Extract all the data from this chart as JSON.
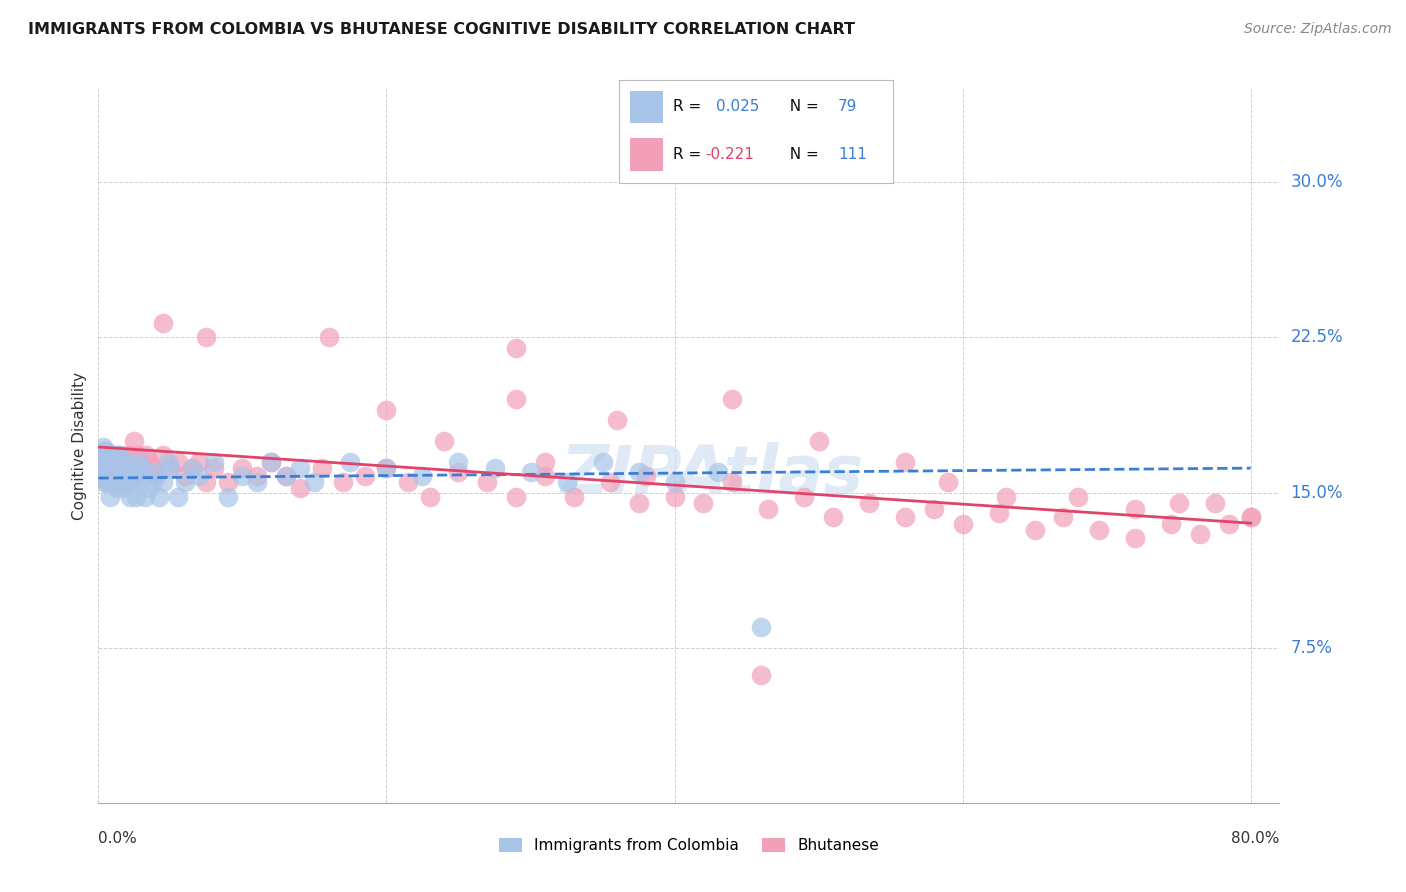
{
  "title": "IMMIGRANTS FROM COLOMBIA VS BHUTANESE COGNITIVE DISABILITY CORRELATION CHART",
  "source": "Source: ZipAtlas.com",
  "ylabel": "Cognitive Disability",
  "xlim": [
    0.0,
    0.82
  ],
  "ylim": [
    0.0,
    0.345
  ],
  "grid_color": "#d0d0d0",
  "watermark": "ZIPAtlas",
  "color_colombia": "#a8c4e8",
  "color_bhutan": "#f2a0b8",
  "trendline_colombia_color": "#3a7fd4",
  "trendline_bhutan_color": "#e0446a",
  "colombia_x": [
    0.001,
    0.002,
    0.003,
    0.003,
    0.004,
    0.004,
    0.005,
    0.005,
    0.006,
    0.006,
    0.007,
    0.007,
    0.008,
    0.008,
    0.009,
    0.009,
    0.01,
    0.01,
    0.011,
    0.011,
    0.012,
    0.012,
    0.013,
    0.013,
    0.014,
    0.015,
    0.015,
    0.016,
    0.016,
    0.017,
    0.017,
    0.018,
    0.018,
    0.019,
    0.02,
    0.02,
    0.021,
    0.022,
    0.022,
    0.023,
    0.024,
    0.025,
    0.026,
    0.027,
    0.028,
    0.03,
    0.032,
    0.033,
    0.035,
    0.038,
    0.04,
    0.042,
    0.045,
    0.048,
    0.05,
    0.055,
    0.06,
    0.065,
    0.07,
    0.08,
    0.09,
    0.1,
    0.11,
    0.12,
    0.13,
    0.14,
    0.15,
    0.175,
    0.2,
    0.225,
    0.25,
    0.275,
    0.3,
    0.325,
    0.35,
    0.375,
    0.4,
    0.43,
    0.46
  ],
  "colombia_y": [
    0.162,
    0.168,
    0.158,
    0.172,
    0.165,
    0.155,
    0.17,
    0.16,
    0.158,
    0.162,
    0.165,
    0.155,
    0.16,
    0.148,
    0.162,
    0.155,
    0.158,
    0.168,
    0.155,
    0.162,
    0.158,
    0.165,
    0.152,
    0.16,
    0.168,
    0.155,
    0.162,
    0.158,
    0.165,
    0.152,
    0.16,
    0.155,
    0.162,
    0.158,
    0.165,
    0.155,
    0.16,
    0.162,
    0.148,
    0.158,
    0.155,
    0.16,
    0.148,
    0.155,
    0.165,
    0.162,
    0.148,
    0.158,
    0.152,
    0.155,
    0.16,
    0.148,
    0.155,
    0.165,
    0.162,
    0.148,
    0.155,
    0.162,
    0.158,
    0.165,
    0.148,
    0.158,
    0.155,
    0.165,
    0.158,
    0.162,
    0.155,
    0.165,
    0.162,
    0.158,
    0.165,
    0.162,
    0.16,
    0.155,
    0.165,
    0.16,
    0.155,
    0.16,
    0.085
  ],
  "bhutan_x": [
    0.001,
    0.002,
    0.003,
    0.003,
    0.004,
    0.004,
    0.005,
    0.005,
    0.006,
    0.006,
    0.007,
    0.007,
    0.008,
    0.008,
    0.009,
    0.01,
    0.01,
    0.011,
    0.011,
    0.012,
    0.012,
    0.013,
    0.013,
    0.014,
    0.015,
    0.015,
    0.016,
    0.017,
    0.017,
    0.018,
    0.019,
    0.02,
    0.021,
    0.022,
    0.023,
    0.025,
    0.027,
    0.03,
    0.033,
    0.035,
    0.038,
    0.04,
    0.045,
    0.05,
    0.055,
    0.06,
    0.065,
    0.07,
    0.075,
    0.08,
    0.09,
    0.1,
    0.11,
    0.12,
    0.13,
    0.14,
    0.155,
    0.17,
    0.185,
    0.2,
    0.215,
    0.23,
    0.25,
    0.27,
    0.29,
    0.31,
    0.33,
    0.355,
    0.375,
    0.4,
    0.42,
    0.44,
    0.465,
    0.49,
    0.51,
    0.535,
    0.56,
    0.58,
    0.6,
    0.625,
    0.65,
    0.67,
    0.695,
    0.72,
    0.745,
    0.765,
    0.785,
    0.8,
    0.29,
    0.045,
    0.29,
    0.36,
    0.44,
    0.5,
    0.56,
    0.59,
    0.63,
    0.68,
    0.72,
    0.75,
    0.775,
    0.8,
    0.075,
    0.16,
    0.2,
    0.24,
    0.31,
    0.38,
    0.46
  ],
  "bhutan_y": [
    0.165,
    0.162,
    0.168,
    0.158,
    0.16,
    0.17,
    0.165,
    0.155,
    0.162,
    0.168,
    0.158,
    0.162,
    0.155,
    0.168,
    0.162,
    0.158,
    0.165,
    0.155,
    0.162,
    0.158,
    0.165,
    0.168,
    0.155,
    0.16,
    0.162,
    0.168,
    0.155,
    0.162,
    0.158,
    0.165,
    0.158,
    0.162,
    0.168,
    0.155,
    0.162,
    0.175,
    0.168,
    0.162,
    0.168,
    0.165,
    0.162,
    0.158,
    0.168,
    0.162,
    0.165,
    0.158,
    0.162,
    0.165,
    0.155,
    0.162,
    0.155,
    0.162,
    0.158,
    0.165,
    0.158,
    0.152,
    0.162,
    0.155,
    0.158,
    0.162,
    0.155,
    0.148,
    0.16,
    0.155,
    0.148,
    0.158,
    0.148,
    0.155,
    0.145,
    0.148,
    0.145,
    0.155,
    0.142,
    0.148,
    0.138,
    0.145,
    0.138,
    0.142,
    0.135,
    0.14,
    0.132,
    0.138,
    0.132,
    0.128,
    0.135,
    0.13,
    0.135,
    0.138,
    0.22,
    0.232,
    0.195,
    0.185,
    0.195,
    0.175,
    0.165,
    0.155,
    0.148,
    0.148,
    0.142,
    0.145,
    0.145,
    0.138,
    0.225,
    0.225,
    0.19,
    0.175,
    0.165,
    0.158,
    0.062
  ]
}
